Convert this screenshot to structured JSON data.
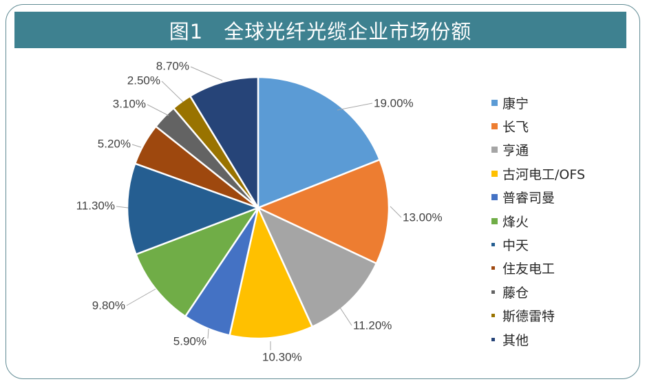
{
  "title": "图1　全球光纤光缆企业市场份额",
  "chart_data": {
    "type": "pie",
    "categories": [
      "康宁",
      "长飞",
      "亨通",
      "古河电工/OFS",
      "普睿司曼",
      "烽火",
      "中天",
      "住友电工",
      "藤仓",
      "斯德雷特",
      "其他"
    ],
    "values": [
      19.0,
      13.0,
      11.2,
      10.3,
      5.9,
      9.8,
      11.3,
      5.2,
      3.1,
      2.5,
      8.7
    ],
    "labels": [
      "19.00%",
      "13.00%",
      "11.20%",
      "10.30%",
      "5.90%",
      "9.80%",
      "11.30%",
      "5.20%",
      "3.10%",
      "2.50%",
      "8.70%"
    ],
    "colors": [
      "#5b9bd5",
      "#ed7d31",
      "#a5a5a5",
      "#ffc000",
      "#4472c4",
      "#70ad47",
      "#255e91",
      "#9e480e",
      "#636363",
      "#997300",
      "#264478"
    ],
    "legend_position": "right",
    "start_angle": "12 o'clock, clockwise"
  },
  "legend": {
    "items": [
      {
        "label": "康宁",
        "color": "#5b9bd5"
      },
      {
        "label": "长飞",
        "color": "#ed7d31"
      },
      {
        "label": "亨通",
        "color": "#a5a5a5"
      },
      {
        "label": "古河电工/OFS",
        "color": "#ffc000"
      },
      {
        "label": "普睿司曼",
        "color": "#4472c4"
      },
      {
        "label": "烽火",
        "color": "#70ad47"
      },
      {
        "label": "中天",
        "color": "#255e91"
      },
      {
        "label": "住友电工",
        "color": "#9e480e"
      },
      {
        "label": "藤仓",
        "color": "#636363"
      },
      {
        "label": " 斯德雷特",
        "color": "#997300"
      },
      {
        "label": "其他",
        "color": "#264478"
      }
    ]
  }
}
